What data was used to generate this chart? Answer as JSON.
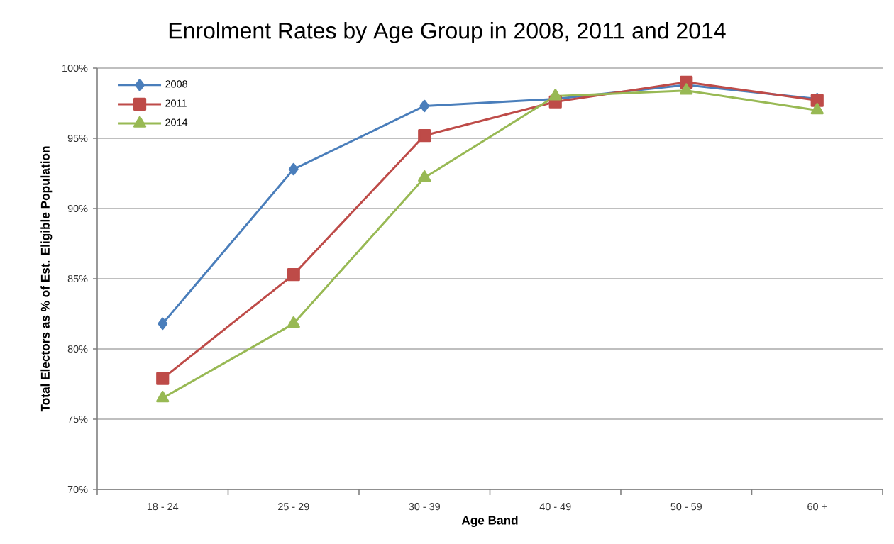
{
  "chart_data": {
    "type": "line",
    "title": "Enrolment Rates by Age Group in 2008, 2011 and 2014",
    "xlabel": "Age Band",
    "ylabel": "Total Electors as % of Est. Eligible Population",
    "categories": [
      "18 - 24",
      "25 - 29",
      "30 - 39",
      "40 - 49",
      "50 - 59",
      "60 +"
    ],
    "series": [
      {
        "name": "2008",
        "color": "#4a7ebb",
        "marker": "diamond",
        "values": [
          81.8,
          92.8,
          97.3,
          97.8,
          98.8,
          97.8
        ]
      },
      {
        "name": "2011",
        "color": "#be4b48",
        "marker": "square",
        "values": [
          77.9,
          85.3,
          95.2,
          97.6,
          99.0,
          97.7
        ]
      },
      {
        "name": "2014",
        "color": "#98b954",
        "marker": "triangle",
        "values": [
          76.5,
          81.8,
          92.2,
          98.0,
          98.4,
          97.0
        ]
      }
    ],
    "ylim": [
      70,
      100
    ],
    "yticks": [
      {
        "value": 70,
        "label": "70%"
      },
      {
        "value": 75,
        "label": "75%"
      },
      {
        "value": 80,
        "label": "80%"
      },
      {
        "value": 85,
        "label": "85%"
      },
      {
        "value": 90,
        "label": "90%"
      },
      {
        "value": 95,
        "label": "95%"
      },
      {
        "value": 100,
        "label": "100%"
      }
    ],
    "grid": "y",
    "legend": "top left",
    "line_style": "solid"
  }
}
